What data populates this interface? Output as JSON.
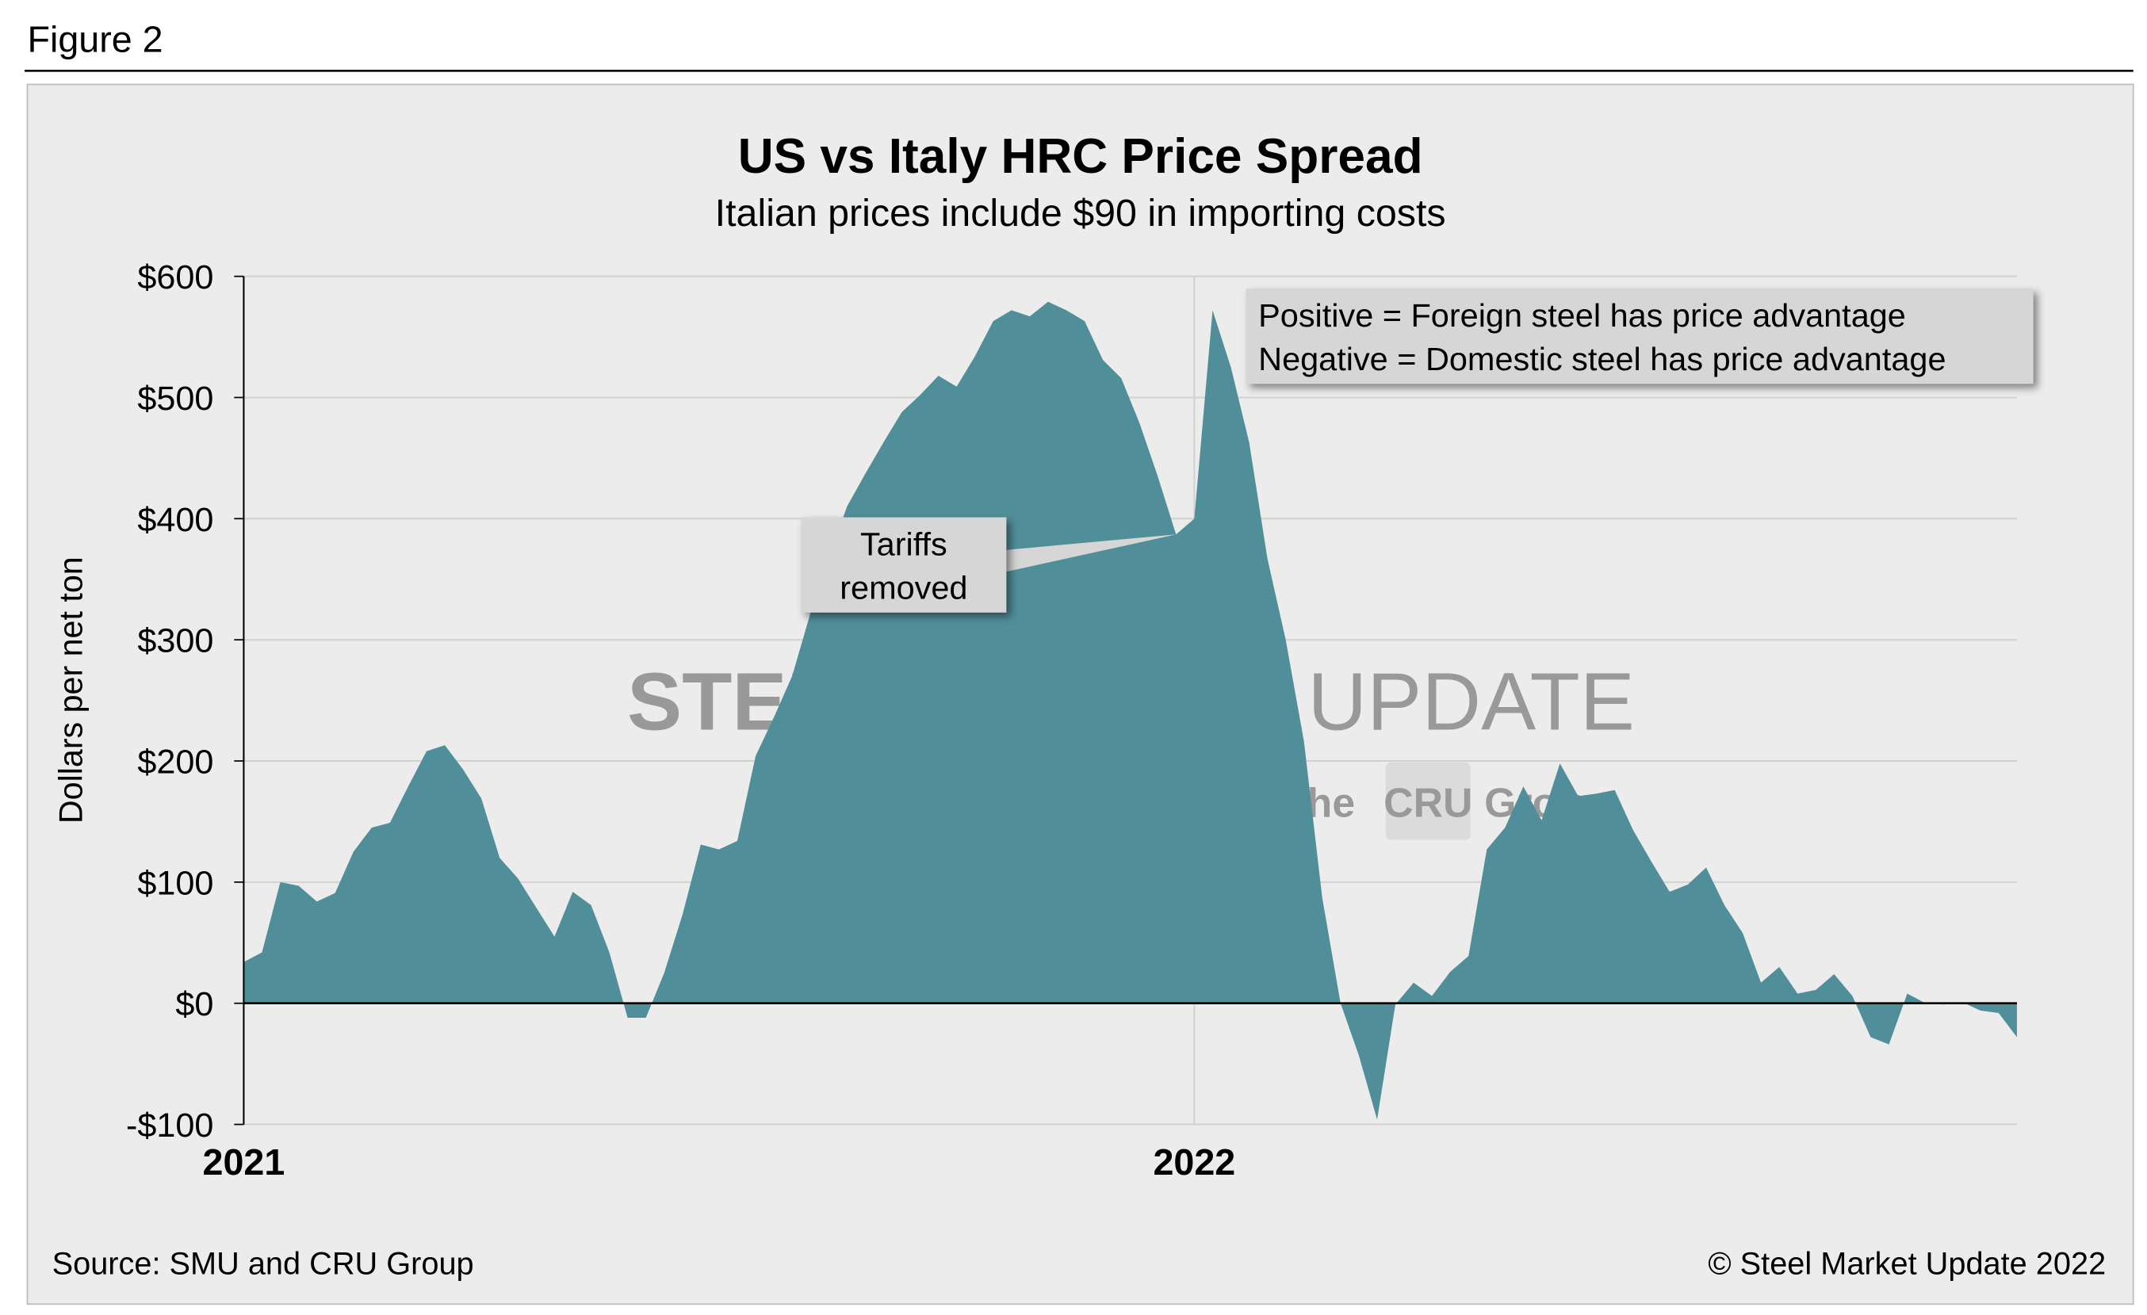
{
  "figure_label": "Figure 2",
  "chart_data": {
    "type": "area",
    "title": "US vs Italy HRC Price Spread",
    "subtitle": "Italian prices include $90 in importing costs",
    "y_label": "Dollars per net ton",
    "source": "Source: SMU and CRU Group",
    "copyright": "© Steel Market Update 2022",
    "watermark": [
      "STEEL MARKET",
      "UPDATE",
      "part of the",
      "CRU",
      "Group"
    ],
    "note": [
      "Positive = Foreign steel has price advantage",
      "Negative = Domestic steel has price advantage"
    ],
    "callout": {
      "lines": [
        "Tariffs",
        "removed"
      ],
      "index": 51
    },
    "color": "#508f99",
    "grid": true,
    "ylim": [
      -100,
      600
    ],
    "yticks": [
      {
        "value": -100,
        "label": "-$100"
      },
      {
        "value": 0,
        "label": "$0"
      },
      {
        "value": 100,
        "label": "$100"
      },
      {
        "value": 200,
        "label": "$200"
      },
      {
        "value": 300,
        "label": "$300"
      },
      {
        "value": 400,
        "label": "$400"
      },
      {
        "value": 500,
        "label": "$500"
      },
      {
        "value": 600,
        "label": "$600"
      }
    ],
    "categories": [
      "2021",
      null,
      null,
      null,
      null,
      null,
      null,
      null,
      null,
      null,
      null,
      null,
      null,
      null,
      null,
      null,
      null,
      null,
      null,
      null,
      null,
      null,
      null,
      null,
      null,
      null,
      null,
      null,
      null,
      null,
      null,
      null,
      null,
      null,
      null,
      null,
      null,
      null,
      null,
      null,
      null,
      null,
      null,
      null,
      null,
      null,
      null,
      null,
      null,
      null,
      null,
      null,
      "2022",
      null,
      null,
      null,
      null,
      null,
      null,
      null,
      null,
      null,
      null,
      null,
      null,
      null,
      null,
      null,
      null,
      null,
      null,
      null,
      null,
      null,
      null,
      null,
      null,
      null,
      null,
      null,
      null,
      null,
      null,
      null,
      null,
      null,
      null,
      null,
      null,
      null,
      null,
      null,
      null,
      null,
      null,
      null,
      null,
      null
    ],
    "values": [
      34,
      42,
      100,
      97,
      84,
      91,
      125,
      145,
      149,
      179,
      208,
      213,
      193,
      169,
      120,
      103,
      79,
      55,
      92,
      81,
      42,
      -12,
      -12,
      25,
      73,
      131,
      127,
      134,
      204,
      236,
      270,
      322,
      367,
      410,
      437,
      463,
      488,
      502,
      518,
      509,
      534,
      563,
      572,
      567,
      579,
      572,
      563,
      531,
      516,
      479,
      435,
      387,
      400,
      572,
      525,
      463,
      367,
      300,
      216,
      87,
      0,
      -43,
      -96,
      -1,
      17,
      6,
      26,
      39,
      127,
      145,
      179,
      151,
      198,
      171,
      173,
      176,
      143,
      117,
      92,
      98,
      112,
      81,
      58,
      17,
      30,
      8,
      11,
      24,
      6,
      -28,
      -34,
      8,
      0,
      -1,
      1,
      -6,
      -8,
      -28
    ]
  }
}
